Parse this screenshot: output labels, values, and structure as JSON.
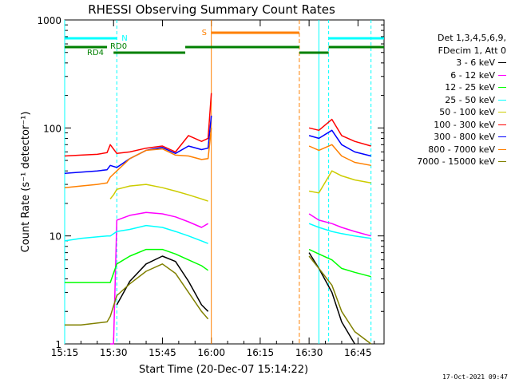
{
  "chart_data": {
    "type": "line",
    "title": "RHESSI Observing Summary Count Rates",
    "xlabel": "Start Time (20-Dec-07 15:14:22)",
    "ylabel": "Count Rate (s⁻¹ detector⁻¹)",
    "xlim": [
      "15:15",
      "16:53"
    ],
    "ylim": [
      1,
      1000
    ],
    "yscale": "log",
    "x_ticks": [
      "15:15",
      "15:30",
      "15:45",
      "16:00",
      "16:15",
      "16:30",
      "16:45"
    ],
    "y_ticks": [
      "1",
      "10",
      "100",
      "1000"
    ],
    "legend_header": [
      "Det 1,3,4,5,6,9,",
      "FDecim 1, Att 0"
    ],
    "legend_position": "right",
    "series": [
      {
        "name": "3 - 6 keV",
        "color": "#000000",
        "x": [
          "15:15",
          "15:28",
          "15:31",
          "15:35",
          "15:40",
          "15:45",
          "15:49",
          "15:53",
          "15:57",
          "15:59",
          "16:00",
          "16:29",
          "16:30",
          "16:33",
          "16:37",
          "16:40",
          "16:44",
          "16:49"
        ],
        "values": [
          null,
          null,
          2.3,
          3.8,
          5.5,
          6.5,
          5.8,
          3.8,
          2.3,
          2.0,
          null,
          null,
          7,
          5,
          3,
          1.6,
          1,
          null
        ]
      },
      {
        "name": "6 - 12 keV",
        "color": "#ff00ff",
        "x": [
          "15:15",
          "15:28",
          "15:29",
          "15:30",
          "15:31",
          "15:35",
          "15:40",
          "15:45",
          "15:49",
          "15:53",
          "15:57",
          "15:59",
          "16:00",
          "16:29",
          "16:30",
          "16:33",
          "16:37",
          "16:40",
          "16:44",
          "16:49"
        ],
        "values": [
          null,
          null,
          1,
          1,
          14,
          15.5,
          16.5,
          16,
          15,
          13.5,
          12,
          13,
          null,
          null,
          16,
          14,
          13,
          12,
          11,
          10
        ]
      },
      {
        "name": "12 - 25 keV",
        "color": "#00ff00",
        "x": [
          "15:15",
          "15:20",
          "15:28",
          "15:29",
          "15:31",
          "15:35",
          "15:40",
          "15:45",
          "15:49",
          "15:53",
          "15:57",
          "15:59",
          "16:00",
          "16:29",
          "16:30",
          "16:33",
          "16:37",
          "16:40",
          "16:44",
          "16:49"
        ],
        "values": [
          3.7,
          3.7,
          3.7,
          3.7,
          5.5,
          6.5,
          7.5,
          7.5,
          6.8,
          6.0,
          5.3,
          4.8,
          null,
          null,
          7.5,
          6.8,
          6.0,
          5.0,
          4.6,
          4.2
        ]
      },
      {
        "name": "25 - 50 keV",
        "color": "#00ffff",
        "x": [
          "15:15",
          "15:20",
          "15:28",
          "15:29",
          "15:31",
          "15:35",
          "15:40",
          "15:45",
          "15:49",
          "15:53",
          "15:57",
          "15:59",
          "16:00",
          "16:29",
          "16:30",
          "16:33",
          "16:37",
          "16:40",
          "16:44",
          "16:49"
        ],
        "values": [
          9,
          9.5,
          10,
          10,
          11,
          11.5,
          12.5,
          12,
          11,
          10,
          9,
          8.5,
          null,
          null,
          13,
          12,
          11,
          10.5,
          10,
          9.5
        ]
      },
      {
        "name": "50 - 100 keV",
        "color": "#cccc00",
        "x": [
          "15:15",
          "15:28",
          "15:29",
          "15:30",
          "15:31",
          "15:35",
          "15:40",
          "15:45",
          "15:49",
          "15:53",
          "15:57",
          "15:59",
          "16:00",
          "16:29",
          "16:30",
          "16:33",
          "16:37",
          "16:40",
          "16:44",
          "16:49"
        ],
        "values": [
          null,
          null,
          22,
          24,
          27,
          29,
          30,
          28,
          26,
          24,
          22,
          21,
          null,
          null,
          26,
          25,
          40,
          36,
          33,
          31
        ]
      },
      {
        "name": "100 - 300 keV",
        "color": "#ff0000",
        "x": [
          "15:15",
          "15:20",
          "15:25",
          "15:28",
          "15:29",
          "15:31",
          "15:35",
          "15:40",
          "15:45",
          "15:49",
          "15:53",
          "15:57",
          "15:59",
          "16:00",
          "16:29",
          "16:30",
          "16:33",
          "16:37",
          "16:40",
          "16:44",
          "16:49"
        ],
        "values": [
          55,
          56,
          57,
          59,
          70,
          58,
          60,
          65,
          68,
          60,
          85,
          75,
          80,
          210,
          null,
          100,
          95,
          120,
          85,
          75,
          68
        ]
      },
      {
        "name": "300 - 800 keV",
        "color": "#0000ff",
        "x": [
          "15:15",
          "15:20",
          "15:25",
          "15:28",
          "15:29",
          "15:31",
          "15:35",
          "15:40",
          "15:45",
          "15:49",
          "15:53",
          "15:57",
          "15:59",
          "16:00",
          "16:29",
          "16:30",
          "16:33",
          "16:37",
          "16:40",
          "16:44",
          "16:49"
        ],
        "values": [
          38,
          39,
          40,
          41,
          45,
          43,
          52,
          62,
          66,
          58,
          68,
          63,
          65,
          130,
          null,
          85,
          80,
          95,
          70,
          60,
          55
        ]
      },
      {
        "name": "800 - 7000 keV",
        "color": "#ff8000",
        "x": [
          "15:15",
          "15:20",
          "15:25",
          "15:28",
          "15:29",
          "15:31",
          "15:35",
          "15:40",
          "15:45",
          "15:49",
          "15:53",
          "15:57",
          "15:59",
          "16:00",
          "16:29",
          "16:30",
          "16:33",
          "16:37",
          "16:40",
          "16:44",
          "16:49"
        ],
        "values": [
          28,
          29,
          30,
          31,
          35,
          40,
          52,
          62,
          64,
          56,
          55,
          51,
          52,
          100,
          null,
          68,
          62,
          70,
          55,
          48,
          45
        ]
      },
      {
        "name": "7000 - 15000 keV",
        "color": "#808000",
        "x": [
          "15:15",
          "15:20",
          "15:28",
          "15:29",
          "15:31",
          "15:35",
          "15:40",
          "15:45",
          "15:49",
          "15:53",
          "15:57",
          "15:59",
          "16:00",
          "16:29",
          "16:30",
          "16:33",
          "16:37",
          "16:40",
          "16:44",
          "16:49"
        ],
        "values": [
          1.5,
          1.5,
          1.6,
          1.8,
          2.8,
          3.6,
          4.7,
          5.5,
          4.5,
          3.0,
          2.0,
          1.7,
          null,
          null,
          6.5,
          5.0,
          3.5,
          2.0,
          1.3,
          1.0
        ]
      }
    ],
    "markers": [
      {
        "label": "N",
        "color": "#00ffff",
        "kind": "dashed",
        "x": "15:31"
      },
      {
        "label": "S",
        "color": "#ff8000",
        "kind": "dashed",
        "x": "16:27"
      },
      {
        "label": "RD0",
        "color": "#008000",
        "kind": "bar",
        "x": "15:28"
      },
      {
        "label": "RD4",
        "color": "#008000",
        "kind": "bar",
        "x": "15:15"
      }
    ],
    "footer_timestamp": "17-Oct-2021 09:47"
  }
}
